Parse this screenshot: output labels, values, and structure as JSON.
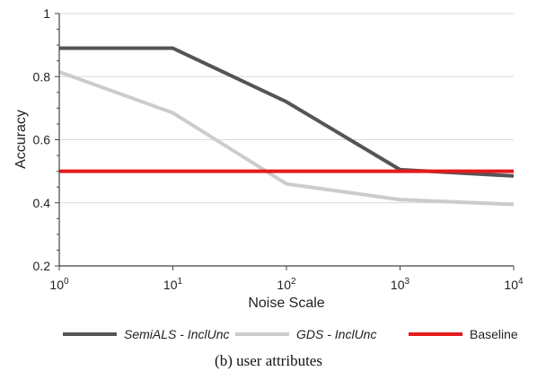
{
  "chart_data": {
    "type": "line",
    "xlabel": "Noise Scale",
    "ylabel": "Accuracy",
    "x": [
      {
        "base": "10",
        "exp": "0",
        "value": 1
      },
      {
        "base": "10",
        "exp": "1",
        "value": 10
      },
      {
        "base": "10",
        "exp": "2",
        "value": 100
      },
      {
        "base": "10",
        "exp": "3",
        "value": 1000
      },
      {
        "base": "10",
        "exp": "4",
        "value": 10000
      }
    ],
    "xscale": "log",
    "ylim": [
      0.2,
      1
    ],
    "yticks": [
      "0.2",
      "0.4",
      "0.6",
      "0.8",
      "1"
    ],
    "grid": true,
    "legend_position": "bottom",
    "series": [
      {
        "name": "SemiALS - InclUnc",
        "italic": true,
        "color": "#555555",
        "values": [
          0.89,
          0.89,
          0.72,
          0.505,
          0.485
        ]
      },
      {
        "name": "GDS - InclUnc",
        "italic": true,
        "color": "#cccccc",
        "values": [
          0.815,
          0.685,
          0.46,
          0.41,
          0.395
        ]
      },
      {
        "name": "Baseline",
        "italic": false,
        "color": "#e41a1c",
        "values": [
          0.5,
          0.5,
          0.5,
          0.5,
          0.5
        ]
      }
    ]
  },
  "caption": "(b) user attributes"
}
